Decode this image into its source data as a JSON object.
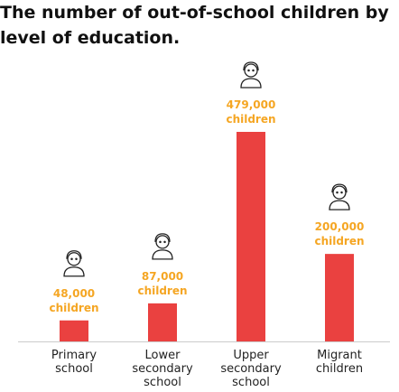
{
  "chart_data": {
    "type": "bar",
    "title": "The number of out-of-school children by level of education.",
    "categories": [
      "Primary school",
      "Lower secondary school",
      "Upper secondary school",
      "Migrant children"
    ],
    "values": [
      48000,
      87000,
      479000,
      200000
    ],
    "value_labels": [
      "48,000 children",
      "87,000 children",
      "479,000 children",
      "200,000 children"
    ],
    "color": "#ea4140",
    "label_color": "#f5a623"
  }
}
